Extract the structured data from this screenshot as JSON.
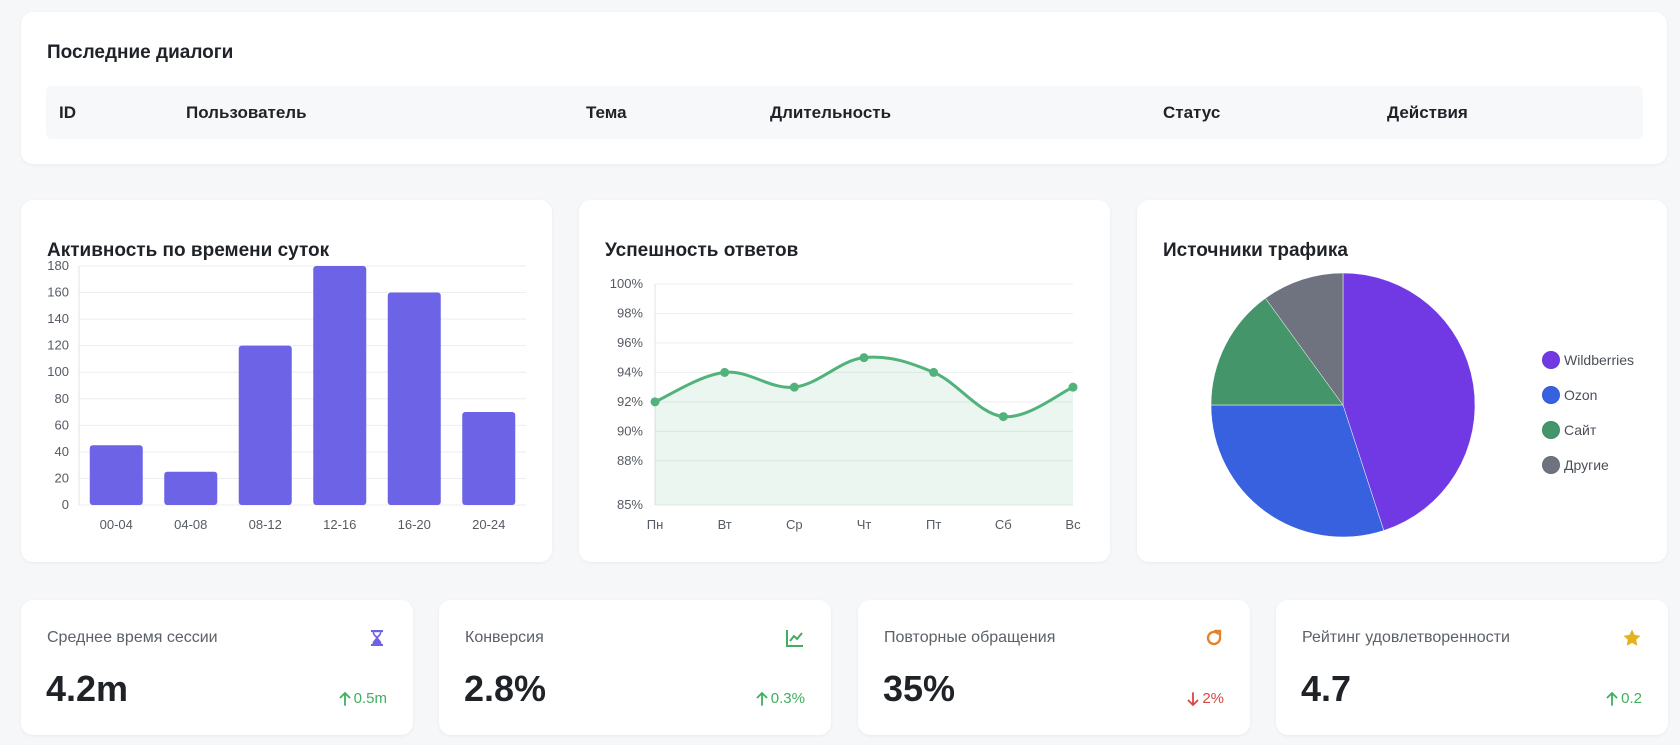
{
  "dialogs": {
    "title": "Последние диалоги",
    "columns": [
      "ID",
      "Пользователь",
      "Тема",
      "Длительность",
      "Статус",
      "Действия"
    ]
  },
  "activity": {
    "title": "Активность по времени суток",
    "chart_data": {
      "type": "bar",
      "categories": [
        "00-04",
        "04-08",
        "08-12",
        "12-16",
        "16-20",
        "20-24"
      ],
      "values": [
        45,
        25,
        120,
        180,
        160,
        70
      ],
      "ylim": [
        0,
        180
      ],
      "yticks": [
        0,
        20,
        40,
        60,
        80,
        100,
        120,
        140,
        160,
        180
      ],
      "grid": true,
      "color": "#6c63e6"
    }
  },
  "success": {
    "title": "Успешность ответов",
    "chart_data": {
      "type": "line",
      "categories": [
        "Пн",
        "Вт",
        "Ср",
        "Чт",
        "Пт",
        "Сб",
        "Вс"
      ],
      "values": [
        92,
        94,
        93,
        95,
        94,
        91,
        93
      ],
      "ylim": [
        85,
        100
      ],
      "yticks": [
        85,
        88,
        90,
        92,
        94,
        96,
        98,
        100
      ],
      "ytick_labels": [
        "85%",
        "88%",
        "90%",
        "92%",
        "94%",
        "96%",
        "98%",
        "100%"
      ],
      "grid": true,
      "color": "#52b27c"
    }
  },
  "traffic": {
    "title": "Источники трафика",
    "chart_data": {
      "type": "pie",
      "labels": [
        "Wildberries",
        "Ozon",
        "Сайт",
        "Другие"
      ],
      "values": [
        45,
        30,
        15,
        10
      ],
      "colors": [
        "#7139e3",
        "#3861e0",
        "#44966a",
        "#6e737f"
      ],
      "legend_position": "right"
    }
  },
  "stats": [
    {
      "label": "Среднее время сессии",
      "value": "4.2m",
      "change": "0.5m",
      "direction": "up",
      "icon": "hourglass-icon",
      "icon_color": "#6c63e6"
    },
    {
      "label": "Конверсия",
      "value": "2.8%",
      "change": "0.3%",
      "direction": "up",
      "icon": "chart-line-icon",
      "icon_color": "#3fae5e"
    },
    {
      "label": "Повторные обращения",
      "value": "35%",
      "change": "2%",
      "direction": "down",
      "icon": "refresh-icon",
      "icon_color": "#e0832b"
    },
    {
      "label": "Рейтинг удовлетворенности",
      "value": "4.7",
      "change": "0.2",
      "direction": "up",
      "icon": "star-icon",
      "icon_color": "#e3b21e"
    }
  ]
}
